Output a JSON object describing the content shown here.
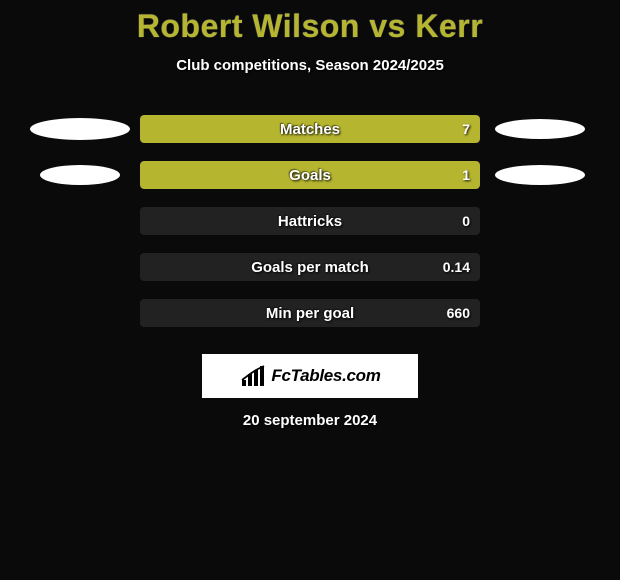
{
  "title": "Robert Wilson vs Kerr",
  "subtitle": "Club competitions, Season 2024/2025",
  "date": "20 september 2024",
  "logo": "FcTables.com",
  "background_color": "#0a0a0a",
  "title_color": "#b5b530",
  "text_color": "#ffffff",
  "track_color": "#222222",
  "player1": {
    "bar_side": "right",
    "bar_color": "#b5b530",
    "ellipse_color": "#ffffff"
  },
  "player2": {
    "ellipse_color": "#ffffff"
  },
  "rows": [
    {
      "label": "Matches",
      "value": "7",
      "fill_side": "right",
      "fill_color": "#b5b530",
      "fill_pct": 100,
      "left_ellipse": {
        "show": true,
        "w": 100,
        "h": 22,
        "color": "#ffffff"
      },
      "right_ellipse": {
        "show": true,
        "w": 90,
        "h": 20,
        "color": "#ffffff"
      }
    },
    {
      "label": "Goals",
      "value": "1",
      "fill_side": "right",
      "fill_color": "#b5b530",
      "fill_pct": 100,
      "left_ellipse": {
        "show": true,
        "w": 80,
        "h": 20,
        "color": "#ffffff"
      },
      "right_ellipse": {
        "show": true,
        "w": 90,
        "h": 20,
        "color": "#ffffff"
      }
    },
    {
      "label": "Hattricks",
      "value": "0",
      "fill_side": "right",
      "fill_color": "#b5b530",
      "fill_pct": 0,
      "left_ellipse": {
        "show": false
      },
      "right_ellipse": {
        "show": false
      }
    },
    {
      "label": "Goals per match",
      "value": "0.14",
      "fill_side": "right",
      "fill_color": "#b5b530",
      "fill_pct": 0,
      "left_ellipse": {
        "show": false
      },
      "right_ellipse": {
        "show": false
      }
    },
    {
      "label": "Min per goal",
      "value": "660",
      "fill_side": "right",
      "fill_color": "#b5b530",
      "fill_pct": 0,
      "left_ellipse": {
        "show": false
      },
      "right_ellipse": {
        "show": false
      }
    }
  ]
}
